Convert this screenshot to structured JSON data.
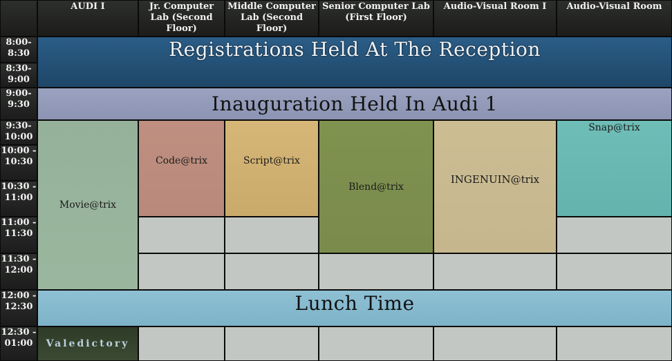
{
  "headers": {
    "col1": "AUDI I",
    "col2": "Jr. Computer Lab (Second Floor)",
    "col3": "Middle Computer Lab (Second Floor)",
    "col4": "Senior Computer Lab (First Floor)",
    "col5": "Audio-Visual Room I",
    "col6": "Audio-Visual Room"
  },
  "times": [
    "8:00-8:30",
    "8:30-9:00",
    "9:00-9:30",
    "9:30-10:00",
    "10:00 - 10:30",
    "10:30 - 11:00",
    "11:00 - 11:30",
    "11:30 - 12:00",
    "12:00 - 12:30",
    "12:30 - 01:00"
  ],
  "banners": {
    "registrations": "Registrations Held At The Reception",
    "inauguration": "Inauguration Held In Audi 1",
    "lunch": "Lunch Time"
  },
  "events": {
    "movie": "Movie@trix",
    "code": "Code@trix",
    "script": "Script@trix",
    "blend": "Blend@trix",
    "ingenuin": "INGENUIN@trix",
    "snap": "Snap@trix",
    "valedictory": "Valedictory"
  },
  "colors": {
    "registrations": "#245179",
    "inauguration": "#959db9",
    "lunch": "#86b9ce",
    "movie": "#98b49c",
    "code": "#bc8d7e",
    "script": "#d0b172",
    "blend": "#7c8f4e",
    "ingenuin": "#c9ba91",
    "snap": "#6ab8b2",
    "empty": "#c3c7c3"
  }
}
